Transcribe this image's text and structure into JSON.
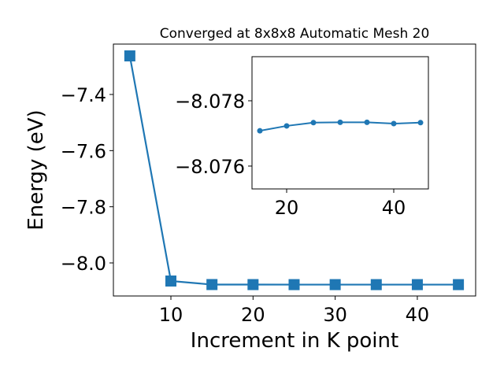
{
  "chart_data": [
    {
      "type": "line",
      "title": "Converged at 8x8x8 Automatic Mesh 20",
      "x_label": "Increment in K point",
      "y_label": "Energy (eV)",
      "x": [
        5,
        10,
        15,
        20,
        25,
        30,
        35,
        40,
        45
      ],
      "series": [
        {
          "color": "#1f77b4",
          "marker": "square",
          "values": [
            -7.2626,
            -8.0645,
            -8.07708,
            -8.07723,
            -8.07733,
            -8.07734,
            -8.07734,
            -8.0773,
            -8.07733
          ]
        }
      ],
      "xlim": [
        3.0,
        47.1
      ],
      "xticks": [
        10,
        20,
        30,
        40
      ],
      "ylim": [
        -8.1178,
        -7.2205
      ],
      "yticks": [
        {
          "value": -8.0,
          "label": "−8.0"
        },
        {
          "value": -7.8,
          "label": "−7.8"
        },
        {
          "value": -7.6,
          "label": "−7.6"
        },
        {
          "value": -7.4,
          "label": "−7.4"
        }
      ]
    },
    {
      "type": "line",
      "x": [
        15,
        20,
        25,
        30,
        35,
        40,
        45
      ],
      "series": [
        {
          "color": "#1f77b4",
          "marker": "circle",
          "values": [
            -8.07708,
            -8.07723,
            -8.07733,
            -8.07734,
            -8.07734,
            -8.0773,
            -8.07733
          ]
        }
      ],
      "xlim": [
        13.53,
        46.47
      ],
      "xticks": [
        20,
        40
      ],
      "ylim": [
        -8.0753,
        -8.07935
      ],
      "yticks": [
        {
          "value": -8.076,
          "label": "−8.076"
        },
        {
          "value": -8.078,
          "label": "−8.078"
        }
      ]
    }
  ]
}
